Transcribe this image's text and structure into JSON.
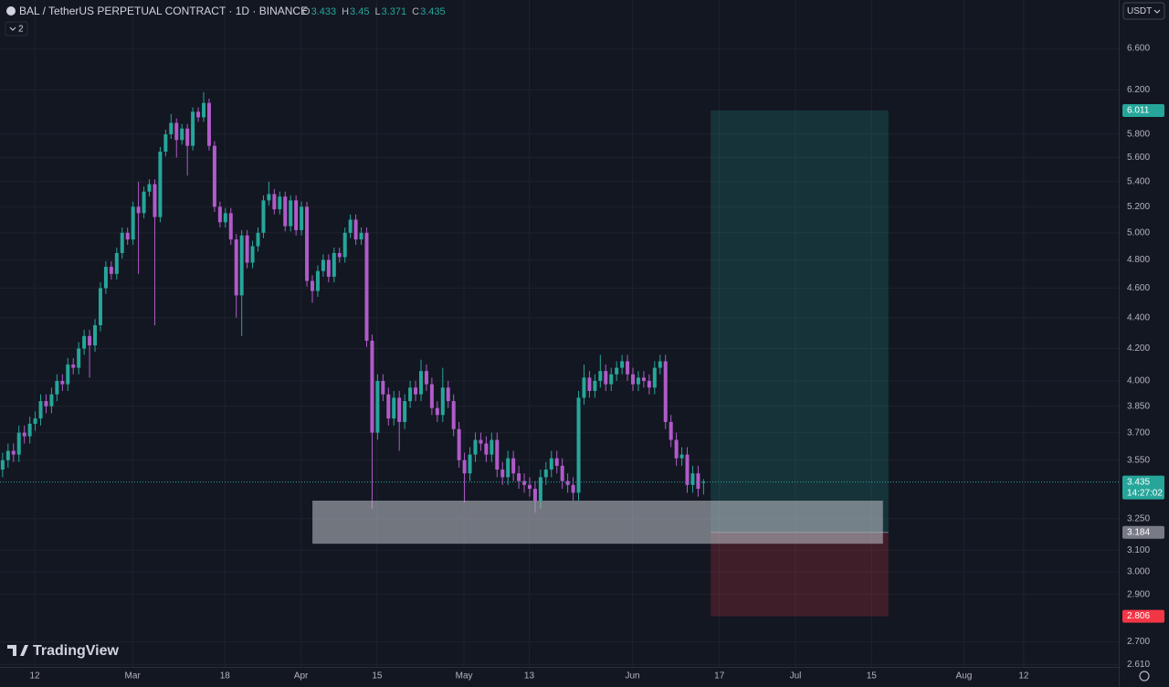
{
  "chart_data": {
    "type": "candlestick",
    "title": "BAL / TetherUS PERPETUAL CONTRACT · 1D · BINANCE",
    "ohlc": [
      {
        "label": "O",
        "value": 3.433
      },
      {
        "label": "H",
        "value": 3.45
      },
      {
        "label": "L",
        "value": 3.371
      },
      {
        "label": "C",
        "value": 3.435
      }
    ],
    "indicator_badge": "2",
    "currency": "USDT",
    "watermark": "TradingView",
    "countdown": "14:27:02",
    "up_color": "#26a69a",
    "down_color": "#b05bc9",
    "log_scale": true,
    "grid": true,
    "ylim": [
      2.6,
      7.1
    ],
    "yticks": [
      {
        "value": 2.61,
        "label": "2.610"
      },
      {
        "value": 2.7,
        "label": "2.700"
      },
      {
        "value": 2.9,
        "label": "2.900"
      },
      {
        "value": 3,
        "label": "3.000"
      },
      {
        "value": 3.1,
        "label": "3.100"
      },
      {
        "value": 3.25,
        "label": "3.250"
      },
      {
        "value": 3.55,
        "label": "3.550"
      },
      {
        "value": 3.7,
        "label": "3.700"
      },
      {
        "value": 3.85,
        "label": "3.850"
      },
      {
        "value": 4,
        "label": "4.000"
      },
      {
        "value": 4.2,
        "label": "4.200"
      },
      {
        "value": 4.4,
        "label": "4.400"
      },
      {
        "value": 4.6,
        "label": "4.600"
      },
      {
        "value": 4.8,
        "label": "4.800"
      },
      {
        "value": 5,
        "label": "5.000"
      },
      {
        "value": 5.2,
        "label": "5.200"
      },
      {
        "value": 5.4,
        "label": "5.400"
      },
      {
        "value": 5.6,
        "label": "5.600"
      },
      {
        "value": 5.8,
        "label": "5.800"
      },
      {
        "value": 6.2,
        "label": "6.200"
      },
      {
        "value": 6.6,
        "label": "6.600"
      }
    ],
    "xlim": [
      -0.4,
      205.5
    ],
    "xticks": [
      {
        "value": 6,
        "label": "12"
      },
      {
        "value": 24,
        "label": "Mar"
      },
      {
        "value": 41,
        "label": "18"
      },
      {
        "value": 55,
        "label": "Apr"
      },
      {
        "value": 69,
        "label": "15"
      },
      {
        "value": 85,
        "label": "May"
      },
      {
        "value": 97,
        "label": "13"
      },
      {
        "value": 116,
        "label": "Jun"
      },
      {
        "value": 132,
        "label": "17"
      },
      {
        "value": 146,
        "label": "Jul"
      },
      {
        "value": 160,
        "label": "15"
      },
      {
        "value": 177,
        "label": "Aug"
      },
      {
        "value": 188,
        "label": "12"
      }
    ],
    "candles": [
      [
        3.5,
        3.59,
        3.46,
        3.55
      ],
      [
        3.55,
        3.64,
        3.51,
        3.6
      ],
      [
        3.6,
        3.64,
        3.54,
        3.58
      ],
      [
        3.58,
        3.74,
        3.54,
        3.7
      ],
      [
        3.7,
        3.74,
        3.64,
        3.68
      ],
      [
        3.68,
        3.79,
        3.64,
        3.75
      ],
      [
        3.75,
        3.82,
        3.71,
        3.78
      ],
      [
        3.78,
        3.92,
        3.74,
        3.88
      ],
      [
        3.88,
        3.92,
        3.81,
        3.85
      ],
      [
        3.85,
        3.96,
        3.81,
        3.92
      ],
      [
        3.92,
        4.04,
        3.88,
        4.0
      ],
      [
        4.0,
        4.04,
        3.94,
        3.98
      ],
      [
        3.98,
        4.14,
        3.94,
        4.1
      ],
      [
        4.1,
        4.14,
        4.04,
        4.08
      ],
      [
        4.08,
        4.24,
        4.04,
        4.2
      ],
      [
        4.2,
        4.32,
        4.16,
        4.28
      ],
      [
        4.28,
        4.32,
        4.02,
        4.22
      ],
      [
        4.22,
        4.39,
        4.18,
        4.35
      ],
      [
        4.35,
        4.64,
        4.31,
        4.6
      ],
      [
        4.6,
        4.79,
        4.56,
        4.75
      ],
      [
        4.75,
        4.79,
        4.66,
        4.7
      ],
      [
        4.7,
        4.89,
        4.66,
        4.85
      ],
      [
        4.85,
        5.04,
        4.81,
        5.0
      ],
      [
        5.0,
        5.04,
        4.91,
        4.95
      ],
      [
        4.95,
        5.24,
        4.91,
        5.2
      ],
      [
        5.2,
        5.4,
        4.7,
        5.15
      ],
      [
        5.15,
        5.36,
        5.11,
        5.32
      ],
      [
        5.32,
        5.42,
        5.28,
        5.38
      ],
      [
        5.38,
        5.42,
        4.35,
        5.12
      ],
      [
        5.12,
        5.69,
        5.08,
        5.65
      ],
      [
        5.65,
        5.84,
        5.61,
        5.8
      ],
      [
        5.8,
        5.98,
        5.76,
        5.9
      ],
      [
        5.9,
        5.94,
        5.6,
        5.75
      ],
      [
        5.75,
        5.89,
        5.71,
        5.85
      ],
      [
        5.85,
        5.89,
        5.45,
        5.7
      ],
      [
        5.7,
        6.04,
        5.66,
        6.0
      ],
      [
        6.0,
        6.04,
        5.91,
        5.95
      ],
      [
        5.95,
        6.18,
        5.91,
        6.08
      ],
      [
        6.08,
        6.12,
        5.66,
        5.7
      ],
      [
        5.7,
        5.74,
        5.16,
        5.2
      ],
      [
        5.2,
        5.24,
        5.04,
        5.08
      ],
      [
        5.08,
        5.19,
        5.04,
        5.15
      ],
      [
        5.15,
        5.19,
        4.91,
        4.95
      ],
      [
        4.95,
        4.99,
        4.4,
        4.55
      ],
      [
        4.55,
        5.02,
        4.28,
        4.98
      ],
      [
        4.98,
        5.02,
        4.74,
        4.78
      ],
      [
        4.78,
        4.94,
        4.74,
        4.9
      ],
      [
        4.9,
        5.04,
        4.86,
        5.0
      ],
      [
        5.0,
        5.29,
        4.96,
        5.25
      ],
      [
        5.25,
        5.4,
        5.21,
        5.3
      ],
      [
        5.3,
        5.34,
        5.14,
        5.18
      ],
      [
        5.18,
        5.32,
        5.14,
        5.28
      ],
      [
        5.28,
        5.32,
        5.01,
        5.05
      ],
      [
        5.05,
        5.29,
        5.01,
        5.25
      ],
      [
        5.25,
        5.29,
        4.98,
        5.02
      ],
      [
        5.02,
        5.24,
        4.98,
        5.2
      ],
      [
        5.2,
        5.24,
        4.61,
        4.65
      ],
      [
        4.65,
        4.69,
        4.5,
        4.58
      ],
      [
        4.58,
        4.76,
        4.54,
        4.72
      ],
      [
        4.72,
        4.84,
        4.68,
        4.8
      ],
      [
        4.8,
        4.84,
        4.64,
        4.68
      ],
      [
        4.68,
        4.89,
        4.64,
        4.85
      ],
      [
        4.85,
        4.89,
        4.78,
        4.82
      ],
      [
        4.82,
        5.04,
        4.78,
        5.0
      ],
      [
        5.0,
        5.14,
        4.96,
        5.1
      ],
      [
        5.1,
        5.14,
        4.91,
        4.95
      ],
      [
        4.95,
        5.04,
        4.91,
        5.0
      ],
      [
        5.0,
        5.04,
        4.21,
        4.25
      ],
      [
        4.25,
        4.29,
        3.3,
        3.7
      ],
      [
        3.7,
        4.04,
        3.66,
        4.0
      ],
      [
        4.0,
        4.04,
        3.88,
        3.92
      ],
      [
        3.92,
        3.96,
        3.74,
        3.78
      ],
      [
        3.78,
        3.94,
        3.74,
        3.9
      ],
      [
        3.9,
        3.94,
        3.6,
        3.76
      ],
      [
        3.76,
        3.92,
        3.72,
        3.88
      ],
      [
        3.88,
        4.0,
        3.84,
        3.96
      ],
      [
        3.96,
        4.0,
        3.88,
        3.92
      ],
      [
        3.92,
        4.13,
        3.88,
        4.06
      ],
      [
        4.06,
        4.1,
        3.94,
        3.98
      ],
      [
        3.98,
        4.02,
        3.8,
        3.84
      ],
      [
        3.84,
        3.88,
        3.76,
        3.8
      ],
      [
        3.8,
        4.08,
        3.76,
        3.96
      ],
      [
        3.96,
        4.0,
        3.84,
        3.88
      ],
      [
        3.88,
        3.92,
        3.68,
        3.72
      ],
      [
        3.72,
        3.76,
        3.51,
        3.55
      ],
      [
        3.55,
        3.59,
        3.33,
        3.48
      ],
      [
        3.48,
        3.62,
        3.44,
        3.58
      ],
      [
        3.58,
        3.7,
        3.54,
        3.66
      ],
      [
        3.66,
        3.7,
        3.6,
        3.64
      ],
      [
        3.64,
        3.68,
        3.54,
        3.58
      ],
      [
        3.58,
        3.7,
        3.54,
        3.66
      ],
      [
        3.66,
        3.7,
        3.46,
        3.5
      ],
      [
        3.5,
        3.54,
        3.42,
        3.46
      ],
      [
        3.46,
        3.6,
        3.42,
        3.56
      ],
      [
        3.56,
        3.6,
        3.44,
        3.48
      ],
      [
        3.48,
        3.52,
        3.4,
        3.44
      ],
      [
        3.44,
        3.48,
        3.38,
        3.42
      ],
      [
        3.42,
        3.46,
        3.36,
        3.4
      ],
      [
        3.4,
        3.44,
        3.28,
        3.34
      ],
      [
        3.34,
        3.5,
        3.3,
        3.46
      ],
      [
        3.46,
        3.54,
        3.42,
        3.5
      ],
      [
        3.5,
        3.6,
        3.46,
        3.56
      ],
      [
        3.56,
        3.6,
        3.48,
        3.52
      ],
      [
        3.52,
        3.56,
        3.4,
        3.44
      ],
      [
        3.44,
        3.48,
        3.38,
        3.42
      ],
      [
        3.42,
        3.46,
        3.34,
        3.38
      ],
      [
        3.38,
        3.94,
        3.34,
        3.9
      ],
      [
        3.9,
        4.1,
        3.86,
        4.02
      ],
      [
        4.02,
        4.06,
        3.9,
        3.94
      ],
      [
        3.94,
        4.04,
        3.9,
        4.0
      ],
      [
        4.0,
        4.16,
        3.96,
        4.06
      ],
      [
        4.06,
        4.1,
        3.94,
        3.98
      ],
      [
        3.98,
        4.08,
        3.94,
        4.04
      ],
      [
        4.04,
        4.12,
        4.0,
        4.08
      ],
      [
        4.08,
        4.16,
        4.04,
        4.12
      ],
      [
        4.12,
        4.16,
        4.0,
        4.04
      ],
      [
        4.04,
        4.08,
        3.94,
        3.98
      ],
      [
        3.98,
        4.06,
        3.94,
        4.02
      ],
      [
        4.02,
        4.06,
        3.96,
        4.0
      ],
      [
        4.0,
        4.04,
        3.92,
        3.96
      ],
      [
        3.96,
        4.12,
        3.92,
        4.08
      ],
      [
        4.08,
        4.16,
        4.04,
        4.12
      ],
      [
        4.12,
        4.16,
        3.72,
        3.76
      ],
      [
        3.76,
        3.8,
        3.62,
        3.66
      ],
      [
        3.66,
        3.7,
        3.52,
        3.56
      ],
      [
        3.56,
        3.62,
        3.52,
        3.58
      ],
      [
        3.58,
        3.62,
        3.38,
        3.42
      ],
      [
        3.42,
        3.52,
        3.38,
        3.48
      ],
      [
        3.48,
        3.52,
        3.36,
        3.4
      ],
      [
        3.433,
        3.45,
        3.371,
        3.435
      ]
    ],
    "zone": {
      "top": 3.34,
      "bottom": 3.13,
      "start": 57.1,
      "end": 162.1
    },
    "position": {
      "target": 6.011,
      "entry": 3.184,
      "stop": 2.806,
      "start": 130.4,
      "end": 163.1,
      "target_color": "#26a69a",
      "stop_color": "#f23645"
    }
  }
}
